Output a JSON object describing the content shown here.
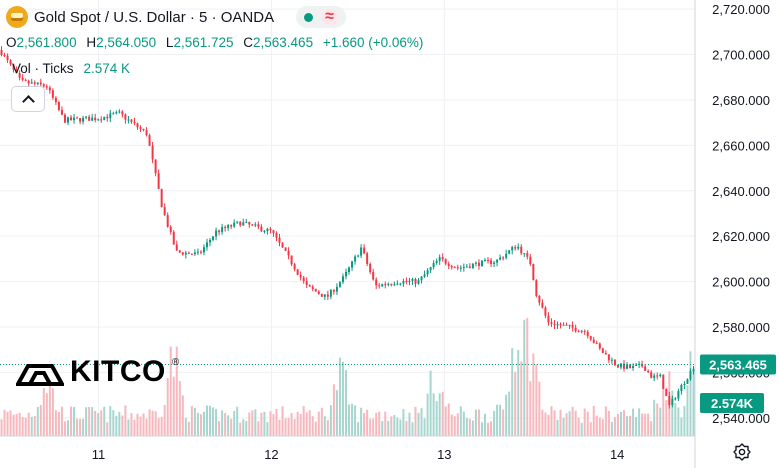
{
  "header": {
    "symbol_title": "Gold Spot / U.S. Dollar · 5 · OANDA",
    "icon": "gold-bars-icon"
  },
  "ohlc": {
    "o_label": "O",
    "o_value": "2,561.800",
    "h_label": "H",
    "h_value": "2,564.050",
    "l_label": "L",
    "l_value": "2,561.725",
    "c_label": "C",
    "c_value": "2,563.465",
    "change": "+1.660 (+0.06%)"
  },
  "volume_legend": {
    "label": "Vol · Ticks",
    "value": "2.574 K"
  },
  "logo": {
    "text": "KITCO",
    "reg": "®"
  },
  "colors": {
    "up": "#089981",
    "down": "#f23645",
    "up_vol": "#a7d6cf",
    "down_vol": "#f6b7bd",
    "grid": "#eef0f3"
  },
  "chart_data": {
    "type": "candlestick",
    "y_axis": {
      "ticks": [
        2720,
        2700,
        2680,
        2660,
        2640,
        2620,
        2600,
        2580,
        2560,
        2540
      ],
      "tick_labels": [
        "2,720.000",
        "2,700.000",
        "2,680.000",
        "2,660.000",
        "2,640.000",
        "2,620.000",
        "2,600.000",
        "2,580.000",
        "2,560.000",
        "2,540.000"
      ],
      "range": [
        2532,
        2724
      ]
    },
    "x_axis": {
      "tick_labels": [
        "11",
        "12",
        "13",
        "14"
      ],
      "range": [
        10.43,
        14.45
      ]
    },
    "last_price": {
      "value": 2563.465,
      "label": "2,563.465"
    },
    "last_volume": {
      "label": "2.574K"
    },
    "volume_range": [
      0,
      8
    ],
    "price_path": [
      [
        10.43,
        2702
      ],
      [
        10.55,
        2688
      ],
      [
        10.7,
        2686
      ],
      [
        10.8,
        2671
      ],
      [
        11.0,
        2672
      ],
      [
        11.12,
        2674
      ],
      [
        11.28,
        2665
      ],
      [
        11.37,
        2632
      ],
      [
        11.45,
        2613
      ],
      [
        11.58,
        2612
      ],
      [
        11.68,
        2622
      ],
      [
        11.82,
        2626
      ],
      [
        12.0,
        2622
      ],
      [
        12.12,
        2608
      ],
      [
        12.2,
        2598
      ],
      [
        12.32,
        2593
      ],
      [
        12.42,
        2602
      ],
      [
        12.52,
        2615
      ],
      [
        12.6,
        2598
      ],
      [
        12.72,
        2600
      ],
      [
        12.85,
        2600
      ],
      [
        12.97,
        2610
      ],
      [
        13.08,
        2606
      ],
      [
        13.2,
        2608
      ],
      [
        13.3,
        2609
      ],
      [
        13.42,
        2616
      ],
      [
        13.5,
        2608
      ],
      [
        13.53,
        2595
      ],
      [
        13.6,
        2582
      ],
      [
        13.72,
        2580
      ],
      [
        13.82,
        2578
      ],
      [
        13.9,
        2570
      ],
      [
        14.0,
        2563
      ],
      [
        14.08,
        2562
      ],
      [
        14.15,
        2563
      ],
      [
        14.2,
        2558
      ],
      [
        14.25,
        2558
      ],
      [
        14.3,
        2545
      ],
      [
        14.38,
        2555
      ],
      [
        14.45,
        2563.465
      ]
    ],
    "volume_peaks": [
      [
        10.7,
        4.0
      ],
      [
        11.43,
        5.6
      ],
      [
        12.4,
        4.4
      ],
      [
        12.95,
        4.2
      ],
      [
        13.42,
        7.8
      ],
      [
        13.5,
        6.2
      ],
      [
        14.28,
        4.2
      ],
      [
        14.44,
        5.2
      ]
    ]
  }
}
